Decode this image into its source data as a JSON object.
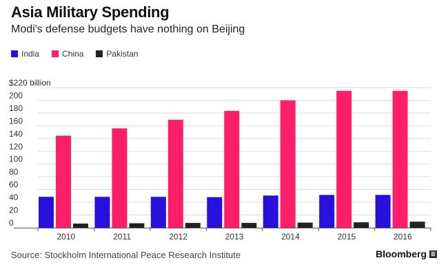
{
  "header": {
    "title": "Asia Military Spending",
    "subtitle": "Modi's defense budgets have nothing on Beijing"
  },
  "footer": {
    "source": "Source: Stockholm International Peace Research Institute",
    "brand": "Bloomberg",
    "logo_mark": "B"
  },
  "colors": {
    "India": "#2a10dc",
    "China": "#ff1e6a",
    "Pakistan": "#222222",
    "grid": "#d8d8d8",
    "axis": "#555555",
    "tick_text": "#333333"
  },
  "chart_data": {
    "type": "bar",
    "title": "Asia Military Spending",
    "subtitle": "Modi's defense budgets have nothing on Beijing",
    "xlabel": "",
    "ylabel": "",
    "categories": [
      "2010",
      "2011",
      "2012",
      "2013",
      "2014",
      "2015",
      "2016"
    ],
    "series": [
      {
        "name": "India",
        "values": [
          48.5,
          48.5,
          48.5,
          48,
          50.5,
          51.5,
          51.5
        ]
      },
      {
        "name": "China",
        "values": [
          144.5,
          156,
          169.5,
          183.5,
          200,
          215,
          215
        ]
      },
      {
        "name": "Pakistan",
        "values": [
          6.5,
          7,
          7.5,
          7.5,
          8,
          8.5,
          9.5
        ]
      }
    ],
    "ylim": [
      0,
      220
    ],
    "yticks": [
      0,
      20,
      40,
      60,
      80,
      100,
      120,
      140,
      160,
      180,
      200,
      220
    ],
    "ytick_labels": [
      "0",
      "20",
      "40",
      "60",
      "80",
      "100",
      "120",
      "140",
      "160",
      "180",
      "200",
      "$220 billion"
    ],
    "grid": true,
    "legend": "top-left"
  }
}
